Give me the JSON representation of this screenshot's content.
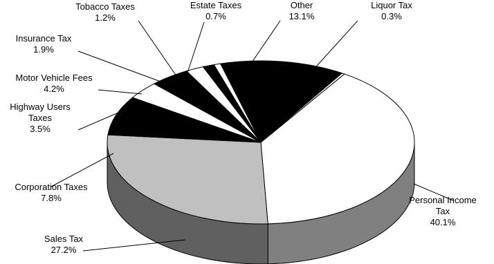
{
  "chart_data": {
    "type": "pie",
    "title": "",
    "slices": [
      {
        "label": "Personal Income Tax",
        "lines": [
          "Personal Income",
          "Tax"
        ],
        "value_text": "40.1%",
        "value": 40.1,
        "top_color": "#ffffff",
        "side_color": "#808080"
      },
      {
        "label": "Sales Tax",
        "lines": [
          "Sales Tax"
        ],
        "value_text": "27.2%",
        "value": 27.2,
        "top_color": "#c0c0c0",
        "side_color": "#606060"
      },
      {
        "label": "Corporation Taxes",
        "lines": [
          "Corporation Taxes"
        ],
        "value_text": "7.8%",
        "value": 7.8,
        "top_color": "#000000",
        "side_color": "#000000"
      },
      {
        "label": "Highway Users Taxes",
        "lines": [
          "Highway Users",
          "Taxes"
        ],
        "value_text": "3.5%",
        "value": 3.5,
        "top_color": "#ffffff",
        "side_color": "#808080"
      },
      {
        "label": "Motor Vehicle Fees",
        "lines": [
          "Motor Vehicle Fees"
        ],
        "value_text": "4.2%",
        "value": 4.2,
        "top_color": "#000000",
        "side_color": "#000000"
      },
      {
        "label": "Insurance Tax",
        "lines": [
          "Insurance Tax"
        ],
        "value_text": "1.9%",
        "value": 1.9,
        "top_color": "#ffffff",
        "side_color": "#808080"
      },
      {
        "label": "Tobacco Taxes",
        "lines": [
          "Tobacco Taxes"
        ],
        "value_text": "1.2%",
        "value": 1.2,
        "top_color": "#000000",
        "side_color": "#000000"
      },
      {
        "label": "Estate Taxes",
        "lines": [
          "Estate Taxes"
        ],
        "value_text": "0.7%",
        "value": 0.7,
        "top_color": "#ffffff",
        "side_color": "#808080"
      },
      {
        "label": "Other",
        "lines": [
          "Other"
        ],
        "value_text": "13.1%",
        "value": 13.1,
        "top_color": "#000000",
        "side_color": "#000000"
      },
      {
        "label": "Liquor Tax",
        "lines": [
          "Liquor Tax"
        ],
        "value_text": "0.3%",
        "value": 0.3,
        "top_color": "#ffffff",
        "side_color": "#808080"
      }
    ]
  }
}
